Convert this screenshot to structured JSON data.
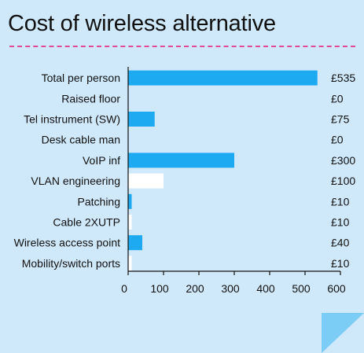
{
  "title": "Cost of wireless alternative",
  "colors": {
    "background": "#cfe9fb",
    "bar": "#1eaaf1",
    "bar_highlight": "#ffffff",
    "title_rule": "#e0489a"
  },
  "chart_data": {
    "type": "bar",
    "orientation": "horizontal",
    "categories": [
      "Total per person",
      "Raised floor",
      "Tel instrument (SW)",
      "Desk cable man",
      "VoIP inf",
      "VLAN engineering",
      "Patching",
      "Cable 2XUTP",
      "Wireless access point",
      "Mobility/switch ports"
    ],
    "values": [
      535,
      0,
      75,
      0,
      300,
      100,
      10,
      10,
      40,
      10
    ],
    "value_labels": [
      "£535",
      "£0",
      "£75",
      "£0",
      "£300",
      "£100",
      "£10",
      "£10",
      "£40",
      "£10"
    ],
    "bar_colors": [
      "#1eaaf1",
      "#1eaaf1",
      "#1eaaf1",
      "#1eaaf1",
      "#1eaaf1",
      "#ffffff",
      "#1eaaf1",
      "#ffffff",
      "#1eaaf1",
      "#ffffff"
    ],
    "xlim": [
      0,
      600
    ],
    "xticks": [
      "0",
      "100",
      "200",
      "300",
      "400",
      "500",
      "600"
    ],
    "grid": false,
    "legend": "none"
  }
}
